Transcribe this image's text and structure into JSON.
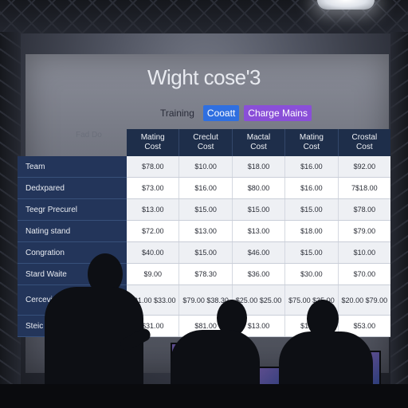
{
  "presentation": {
    "title": "Wight cose'3",
    "tabs": [
      {
        "label": "Training",
        "style": "plain"
      },
      {
        "label": "Cooatt",
        "style": "blue"
      },
      {
        "label": "Charge Mains",
        "style": "purple"
      }
    ],
    "background_note": "Fad Do",
    "table": {
      "columns": [
        "Mating\nCost",
        "Creclut\nCost",
        "Mactal\nCost",
        "Mating\nCost",
        "Crostal\nCost"
      ],
      "rows": [
        {
          "label": "Team",
          "values": [
            "$78.00",
            "$10.00",
            "$18.00",
            "$16.00",
            "$92.00"
          ]
        },
        {
          "label": "Dedxpared",
          "values": [
            "$73.00",
            "$16.00",
            "$80.00",
            "$16.00",
            "7$18.00"
          ]
        },
        {
          "label": "Teegr Precurel",
          "values": [
            "$13.00",
            "$15.00",
            "$15.00",
            "$15.00",
            "$78.00"
          ]
        },
        {
          "label": "Nating stand",
          "values": [
            "$72.00",
            "$13.00",
            "$13.00",
            "$18.00",
            "$79.00"
          ]
        },
        {
          "label": "Congration",
          "values": [
            "$40.00",
            "$15.00",
            "$46.00",
            "$15.00",
            "$10.00"
          ]
        },
        {
          "label": "Stard Waite",
          "values": [
            "$9.00",
            "$78.30",
            "$36.00",
            "$30.00",
            "$70.00"
          ]
        },
        {
          "label": "Cerceving Preise",
          "values": [
            "$31.00 $33.00",
            "$79.00 $38.30",
            "$25.00 $25.00",
            "$75.00 $35.00",
            "$20.00 $79.00"
          ]
        },
        {
          "label": "Steic",
          "values": [
            "$31.00",
            "$81.00",
            "$13.00",
            "$13.00",
            "$53.00"
          ]
        }
      ]
    }
  },
  "colors": {
    "header_bg": "#1e2e4a",
    "label_bg": "#23355a",
    "tab_blue": "#2f6fe0",
    "tab_purple": "#8a4fd8"
  }
}
